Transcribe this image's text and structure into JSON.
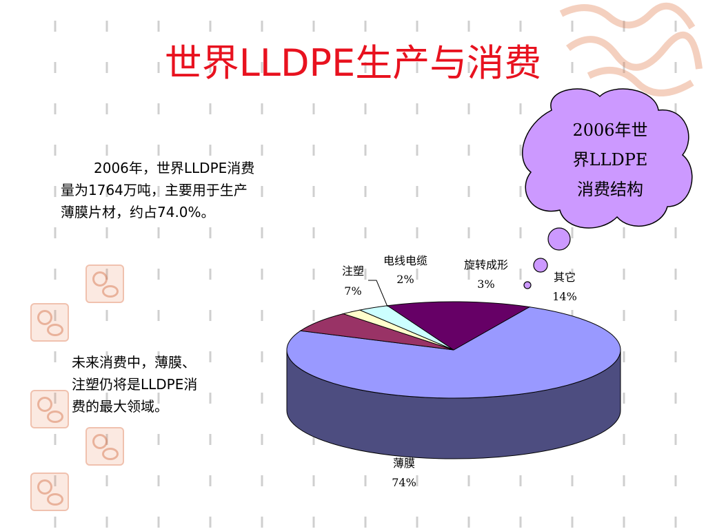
{
  "slide": {
    "title": "世界LLDPE生产与消费",
    "intro_text": "2006年，世界LLDPE消费量为1764万吨，主要用于生产薄膜片材，约占74.0%。",
    "future_text": "未来消费中，薄膜、注塑仍将是LLDPE消费的最大领域。"
  },
  "callout": {
    "lines": [
      "2006年世",
      "界LLDPE",
      "消费结构"
    ]
  },
  "colors": {
    "title": "#e8121f",
    "cloud_fill": "#cc99ff",
    "dashes": "#cfcfcf"
  },
  "chart_data": {
    "type": "pie",
    "style": "3d",
    "title": "2006年世界LLDPE消费结构",
    "slices": [
      {
        "name": "薄膜",
        "value": 74,
        "label": "74%",
        "color": "#9999ff"
      },
      {
        "name": "注塑",
        "value": 7,
        "label": "7%",
        "color": "#993366"
      },
      {
        "name": "电线电缆",
        "value": 2,
        "label": "2%",
        "color": "#ffffcc"
      },
      {
        "name": "旋转成形",
        "value": 3,
        "label": "3%",
        "color": "#ccffff"
      },
      {
        "name": "其它",
        "value": 14,
        "label": "14%",
        "color": "#660066"
      }
    ]
  }
}
